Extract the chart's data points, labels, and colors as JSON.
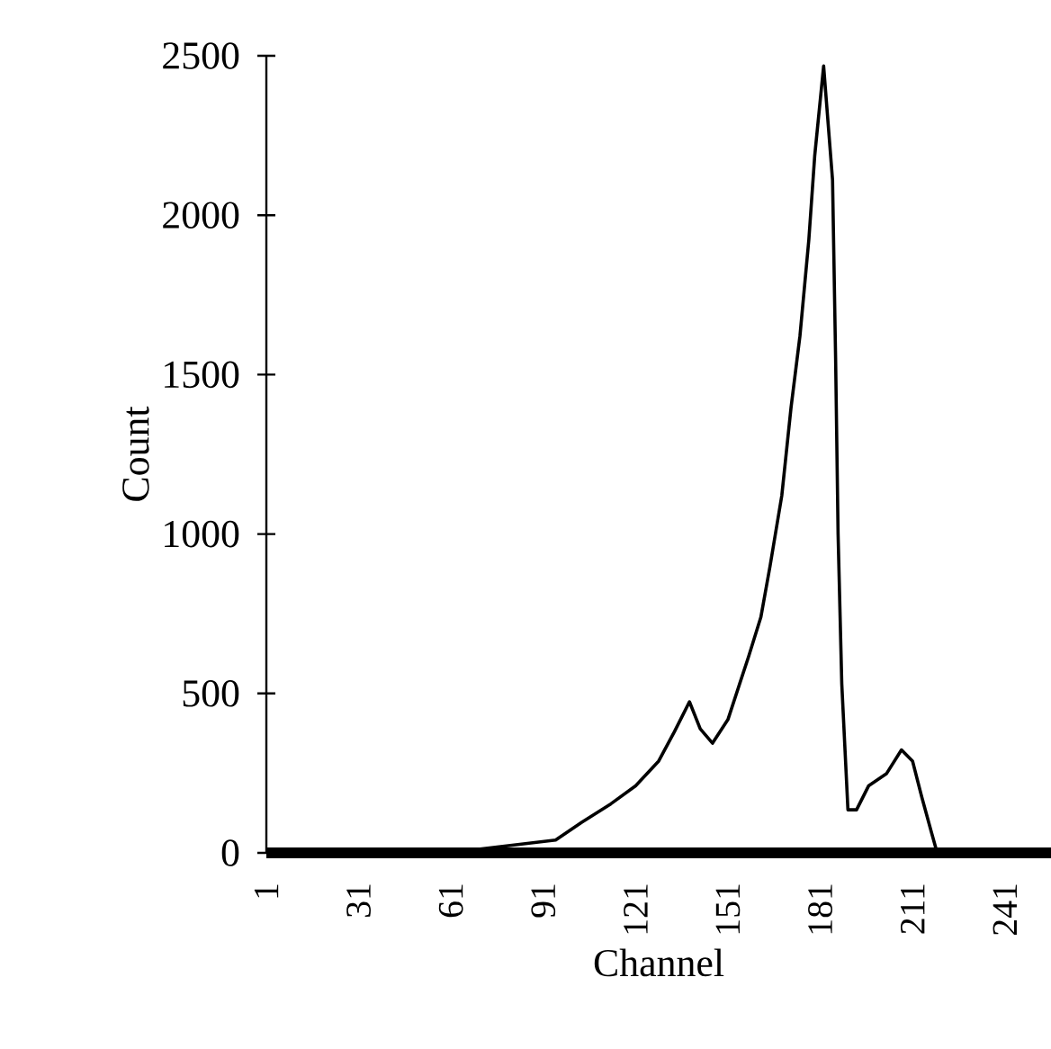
{
  "chart_data": {
    "type": "line",
    "xlabel": "Channel",
    "ylabel": "Count",
    "x": [
      1,
      60,
      95,
      103.5,
      113,
      121,
      128.5,
      133.6,
      138.5,
      142,
      146,
      151,
      154.8,
      157.7,
      161.7,
      164.7,
      168.5,
      171.5,
      174.4,
      177.3,
      179.2,
      182.1,
      185,
      186,
      186.8,
      188,
      190,
      192.8,
      196.7,
      202.5,
      207.4,
      211,
      214,
      217,
      219,
      256
    ],
    "values": [
      0,
      0,
      40,
      96,
      154,
      210,
      288,
      380,
      474,
      389,
      344,
      418,
      530,
      615,
      739,
      900,
      1120,
      1396,
      1621,
      1924,
      2186,
      2468,
      2110,
      1546,
      999,
      530,
      135,
      135,
      210,
      248,
      323,
      288,
      175,
      69,
      0,
      0
    ],
    "color": "#000000",
    "xlim": [
      1,
      256
    ],
    "ylim": [
      0,
      2500
    ],
    "xticks": [
      1,
      31,
      61,
      91,
      121,
      151,
      181,
      211,
      241
    ],
    "yticks": [
      0,
      500,
      1000,
      1500,
      2000,
      2500
    ]
  }
}
